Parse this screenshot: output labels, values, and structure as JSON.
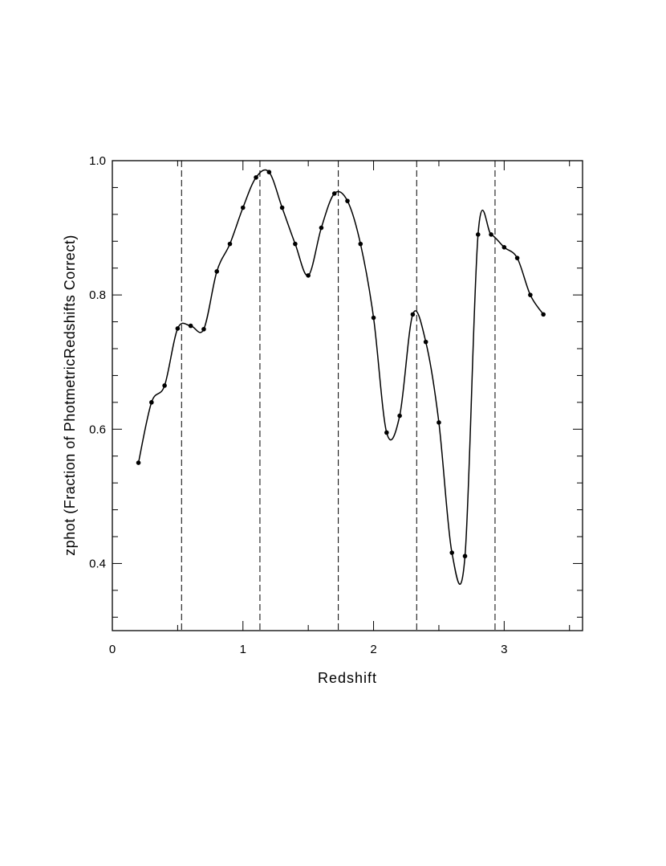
{
  "chart_data": {
    "type": "line",
    "xlabel": "Redshift",
    "ylabel": "zphot (Fraction of PhotmetricRedshifts Correct)",
    "x": [
      0.2,
      0.3,
      0.4,
      0.5,
      0.6,
      0.7,
      0.8,
      0.9,
      1.0,
      1.1,
      1.2,
      1.3,
      1.4,
      1.5,
      1.6,
      1.7,
      1.8,
      1.9,
      2.0,
      2.1,
      2.2,
      2.3,
      2.4,
      2.5,
      2.6,
      2.7,
      2.8,
      2.9,
      3.0,
      3.1,
      3.2,
      3.3
    ],
    "values": [
      0.55,
      0.64,
      0.665,
      0.75,
      0.754,
      0.749,
      0.835,
      0.876,
      0.93,
      0.975,
      0.983,
      0.93,
      0.876,
      0.829,
      0.9,
      0.951,
      0.94,
      0.876,
      0.766,
      0.595,
      0.62,
      0.771,
      0.73,
      0.61,
      0.416,
      0.411,
      0.89,
      0.89,
      0.871,
      0.855,
      0.8,
      0.771
    ],
    "color": "#000000",
    "vlines": [
      0.53,
      1.13,
      1.73,
      2.33,
      2.93
    ],
    "xlim": [
      0,
      3.6
    ],
    "ylim": [
      0.3,
      1.0
    ],
    "xticks": [
      0,
      1,
      2,
      3
    ],
    "xminorticks": [
      0.5,
      1.5,
      2.5,
      3.5
    ],
    "yticks": [
      0.4,
      0.6,
      0.8,
      {
        "value": 1.0,
        "label": "1.0"
      }
    ],
    "yminorticks": [
      0.32,
      0.36,
      0.44,
      0.48,
      0.52,
      0.56,
      0.64,
      0.68,
      0.72,
      0.76,
      0.84,
      0.88,
      0.92,
      0.96
    ]
  }
}
